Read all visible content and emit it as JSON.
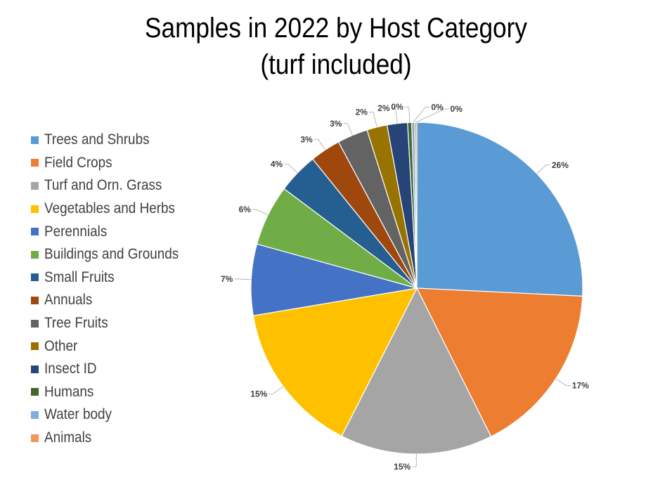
{
  "chart_data": {
    "type": "pie",
    "title": "Samples in 2022 by Host Category",
    "subtitle": "(turf included)",
    "legend_position": "left",
    "slices": [
      {
        "label": "Trees and Shrubs",
        "value": 26,
        "data_label": "26%",
        "color": "#5B9BD5"
      },
      {
        "label": "Field Crops",
        "value": 17,
        "data_label": "17%",
        "color": "#ED7D31"
      },
      {
        "label": "Turf and Orn. Grass",
        "value": 15,
        "data_label": "15%",
        "color": "#A5A5A5"
      },
      {
        "label": "Vegetables and Herbs",
        "value": 15,
        "data_label": "15%",
        "color": "#FFC000"
      },
      {
        "label": "Perennials",
        "value": 7,
        "data_label": "7%",
        "color": "#4472C4"
      },
      {
        "label": "Buildings and Grounds",
        "value": 6,
        "data_label": "6%",
        "color": "#70AD47"
      },
      {
        "label": "Small Fruits",
        "value": 4,
        "data_label": "4%",
        "color": "#255E91"
      },
      {
        "label": "Annuals",
        "value": 3,
        "data_label": "3%",
        "color": "#9E480E"
      },
      {
        "label": "Tree Fruits",
        "value": 3,
        "data_label": "3%",
        "color": "#636363"
      },
      {
        "label": "Other",
        "value": 2,
        "data_label": "2%",
        "color": "#997300"
      },
      {
        "label": "Insect ID",
        "value": 2,
        "data_label": "2%",
        "color": "#264478"
      },
      {
        "label": "Humans",
        "value": 0.4,
        "data_label": "0%",
        "color": "#43682B"
      },
      {
        "label": "Water body",
        "value": 0.3,
        "data_label": "0%",
        "color": "#7CAFDD"
      },
      {
        "label": "Animals",
        "value": 0.2,
        "data_label": "0%",
        "color": "#F1975A"
      }
    ]
  }
}
